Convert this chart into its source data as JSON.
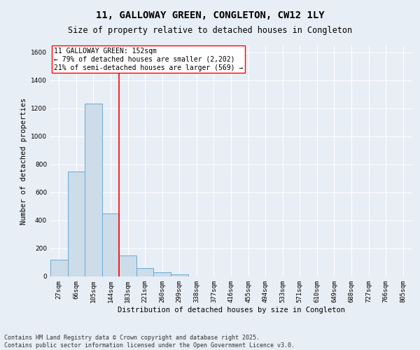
{
  "title": "11, GALLOWAY GREEN, CONGLETON, CW12 1LY",
  "subtitle": "Size of property relative to detached houses in Congleton",
  "xlabel": "Distribution of detached houses by size in Congleton",
  "ylabel": "Number of detached properties",
  "bin_labels": [
    "27sqm",
    "66sqm",
    "105sqm",
    "144sqm",
    "183sqm",
    "221sqm",
    "260sqm",
    "299sqm",
    "338sqm",
    "377sqm",
    "416sqm",
    "455sqm",
    "494sqm",
    "533sqm",
    "571sqm",
    "610sqm",
    "649sqm",
    "688sqm",
    "727sqm",
    "766sqm",
    "805sqm"
  ],
  "bar_heights": [
    120,
    750,
    1235,
    450,
    150,
    58,
    30,
    15,
    0,
    0,
    0,
    0,
    0,
    0,
    0,
    0,
    0,
    0,
    0,
    0,
    0
  ],
  "bar_color": "#ccdce9",
  "bar_edge_color": "#6aaad4",
  "vline_color": "red",
  "annotation_box_text": "11 GALLOWAY GREEN: 152sqm\n← 79% of detached houses are smaller (2,202)\n21% of semi-detached houses are larger (569) →",
  "ylim": [
    0,
    1650
  ],
  "yticks": [
    0,
    200,
    400,
    600,
    800,
    1000,
    1200,
    1400,
    1600
  ],
  "footer_text": "Contains HM Land Registry data © Crown copyright and database right 2025.\nContains public sector information licensed under the Open Government Licence v3.0.",
  "bg_color": "#e8eef5",
  "grid_color": "white",
  "title_fontsize": 10,
  "subtitle_fontsize": 8.5,
  "axis_label_fontsize": 7.5,
  "tick_fontsize": 6.5,
  "annotation_fontsize": 7,
  "footer_fontsize": 6
}
